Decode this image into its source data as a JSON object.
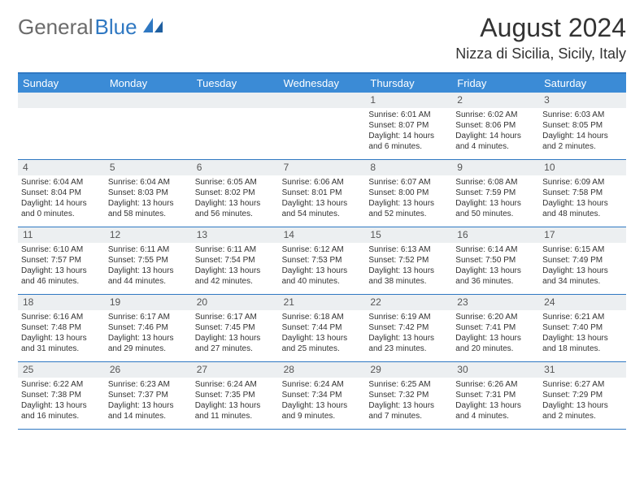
{
  "logo": {
    "gray": "General",
    "blue": "Blue"
  },
  "title": "August 2024",
  "location": "Nizza di Sicilia, Sicily, Italy",
  "header_bg": "#3b8bd6",
  "border_color": "#2f78c2",
  "numbar_bg": "#eceff1",
  "day_headers": [
    "Sunday",
    "Monday",
    "Tuesday",
    "Wednesday",
    "Thursday",
    "Friday",
    "Saturday"
  ],
  "weeks": [
    [
      {
        "n": "",
        "sr": "",
        "ss": "",
        "dl": ""
      },
      {
        "n": "",
        "sr": "",
        "ss": "",
        "dl": ""
      },
      {
        "n": "",
        "sr": "",
        "ss": "",
        "dl": ""
      },
      {
        "n": "",
        "sr": "",
        "ss": "",
        "dl": ""
      },
      {
        "n": "1",
        "sr": "Sunrise: 6:01 AM",
        "ss": "Sunset: 8:07 PM",
        "dl": "Daylight: 14 hours and 6 minutes."
      },
      {
        "n": "2",
        "sr": "Sunrise: 6:02 AM",
        "ss": "Sunset: 8:06 PM",
        "dl": "Daylight: 14 hours and 4 minutes."
      },
      {
        "n": "3",
        "sr": "Sunrise: 6:03 AM",
        "ss": "Sunset: 8:05 PM",
        "dl": "Daylight: 14 hours and 2 minutes."
      }
    ],
    [
      {
        "n": "4",
        "sr": "Sunrise: 6:04 AM",
        "ss": "Sunset: 8:04 PM",
        "dl": "Daylight: 14 hours and 0 minutes."
      },
      {
        "n": "5",
        "sr": "Sunrise: 6:04 AM",
        "ss": "Sunset: 8:03 PM",
        "dl": "Daylight: 13 hours and 58 minutes."
      },
      {
        "n": "6",
        "sr": "Sunrise: 6:05 AM",
        "ss": "Sunset: 8:02 PM",
        "dl": "Daylight: 13 hours and 56 minutes."
      },
      {
        "n": "7",
        "sr": "Sunrise: 6:06 AM",
        "ss": "Sunset: 8:01 PM",
        "dl": "Daylight: 13 hours and 54 minutes."
      },
      {
        "n": "8",
        "sr": "Sunrise: 6:07 AM",
        "ss": "Sunset: 8:00 PM",
        "dl": "Daylight: 13 hours and 52 minutes."
      },
      {
        "n": "9",
        "sr": "Sunrise: 6:08 AM",
        "ss": "Sunset: 7:59 PM",
        "dl": "Daylight: 13 hours and 50 minutes."
      },
      {
        "n": "10",
        "sr": "Sunrise: 6:09 AM",
        "ss": "Sunset: 7:58 PM",
        "dl": "Daylight: 13 hours and 48 minutes."
      }
    ],
    [
      {
        "n": "11",
        "sr": "Sunrise: 6:10 AM",
        "ss": "Sunset: 7:57 PM",
        "dl": "Daylight: 13 hours and 46 minutes."
      },
      {
        "n": "12",
        "sr": "Sunrise: 6:11 AM",
        "ss": "Sunset: 7:55 PM",
        "dl": "Daylight: 13 hours and 44 minutes."
      },
      {
        "n": "13",
        "sr": "Sunrise: 6:11 AM",
        "ss": "Sunset: 7:54 PM",
        "dl": "Daylight: 13 hours and 42 minutes."
      },
      {
        "n": "14",
        "sr": "Sunrise: 6:12 AM",
        "ss": "Sunset: 7:53 PM",
        "dl": "Daylight: 13 hours and 40 minutes."
      },
      {
        "n": "15",
        "sr": "Sunrise: 6:13 AM",
        "ss": "Sunset: 7:52 PM",
        "dl": "Daylight: 13 hours and 38 minutes."
      },
      {
        "n": "16",
        "sr": "Sunrise: 6:14 AM",
        "ss": "Sunset: 7:50 PM",
        "dl": "Daylight: 13 hours and 36 minutes."
      },
      {
        "n": "17",
        "sr": "Sunrise: 6:15 AM",
        "ss": "Sunset: 7:49 PM",
        "dl": "Daylight: 13 hours and 34 minutes."
      }
    ],
    [
      {
        "n": "18",
        "sr": "Sunrise: 6:16 AM",
        "ss": "Sunset: 7:48 PM",
        "dl": "Daylight: 13 hours and 31 minutes."
      },
      {
        "n": "19",
        "sr": "Sunrise: 6:17 AM",
        "ss": "Sunset: 7:46 PM",
        "dl": "Daylight: 13 hours and 29 minutes."
      },
      {
        "n": "20",
        "sr": "Sunrise: 6:17 AM",
        "ss": "Sunset: 7:45 PM",
        "dl": "Daylight: 13 hours and 27 minutes."
      },
      {
        "n": "21",
        "sr": "Sunrise: 6:18 AM",
        "ss": "Sunset: 7:44 PM",
        "dl": "Daylight: 13 hours and 25 minutes."
      },
      {
        "n": "22",
        "sr": "Sunrise: 6:19 AM",
        "ss": "Sunset: 7:42 PM",
        "dl": "Daylight: 13 hours and 23 minutes."
      },
      {
        "n": "23",
        "sr": "Sunrise: 6:20 AM",
        "ss": "Sunset: 7:41 PM",
        "dl": "Daylight: 13 hours and 20 minutes."
      },
      {
        "n": "24",
        "sr": "Sunrise: 6:21 AM",
        "ss": "Sunset: 7:40 PM",
        "dl": "Daylight: 13 hours and 18 minutes."
      }
    ],
    [
      {
        "n": "25",
        "sr": "Sunrise: 6:22 AM",
        "ss": "Sunset: 7:38 PM",
        "dl": "Daylight: 13 hours and 16 minutes."
      },
      {
        "n": "26",
        "sr": "Sunrise: 6:23 AM",
        "ss": "Sunset: 7:37 PM",
        "dl": "Daylight: 13 hours and 14 minutes."
      },
      {
        "n": "27",
        "sr": "Sunrise: 6:24 AM",
        "ss": "Sunset: 7:35 PM",
        "dl": "Daylight: 13 hours and 11 minutes."
      },
      {
        "n": "28",
        "sr": "Sunrise: 6:24 AM",
        "ss": "Sunset: 7:34 PM",
        "dl": "Daylight: 13 hours and 9 minutes."
      },
      {
        "n": "29",
        "sr": "Sunrise: 6:25 AM",
        "ss": "Sunset: 7:32 PM",
        "dl": "Daylight: 13 hours and 7 minutes."
      },
      {
        "n": "30",
        "sr": "Sunrise: 6:26 AM",
        "ss": "Sunset: 7:31 PM",
        "dl": "Daylight: 13 hours and 4 minutes."
      },
      {
        "n": "31",
        "sr": "Sunrise: 6:27 AM",
        "ss": "Sunset: 7:29 PM",
        "dl": "Daylight: 13 hours and 2 minutes."
      }
    ]
  ]
}
